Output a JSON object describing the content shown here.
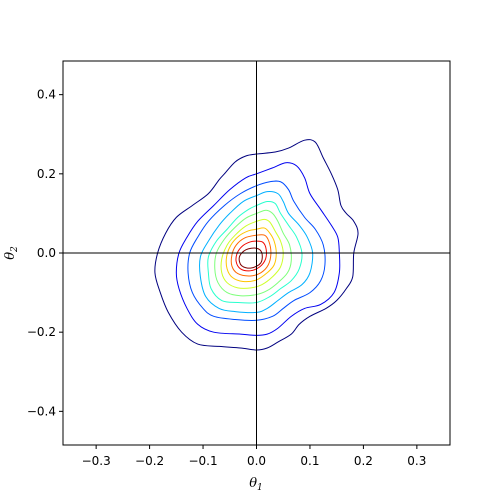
{
  "chart_data": {
    "type": "contour",
    "title": "",
    "xlabel": "θ",
    "xlabel_sub": "1",
    "ylabel": "θ",
    "ylabel_sub": "2",
    "xlim": [
      -0.362,
      0.362
    ],
    "ylim": [
      -0.485,
      0.485
    ],
    "xticks": [
      -0.3,
      -0.2,
      -0.1,
      0.0,
      0.1,
      0.2,
      0.3
    ],
    "xtick_labels": [
      "−0.3",
      "−0.2",
      "−0.1",
      "0.0",
      "0.1",
      "0.2",
      "0.3"
    ],
    "yticks": [
      -0.4,
      -0.2,
      0.0,
      0.2,
      0.4
    ],
    "ytick_labels": [
      "−0.4",
      "−0.2",
      "0.0",
      "0.2",
      "0.4"
    ],
    "reference_lines": {
      "x": 0.0,
      "y": 0.0
    },
    "colormap": "jet",
    "grid": false,
    "contours": [
      {
        "level": 1,
        "color": "#00007f",
        "path": [
          [
            0.0,
            0.25
          ],
          [
            0.035,
            0.255
          ],
          [
            0.06,
            0.265
          ],
          [
            0.09,
            0.285
          ],
          [
            0.11,
            0.28
          ],
          [
            0.125,
            0.24
          ],
          [
            0.14,
            0.2
          ],
          [
            0.152,
            0.16
          ],
          [
            0.158,
            0.12
          ],
          [
            0.168,
            0.1
          ],
          [
            0.182,
            0.08
          ],
          [
            0.19,
            0.05
          ],
          [
            0.182,
            0.0
          ],
          [
            0.18,
            -0.06
          ],
          [
            0.168,
            -0.09
          ],
          [
            0.15,
            -0.12
          ],
          [
            0.13,
            -0.14
          ],
          [
            0.1,
            -0.16
          ],
          [
            0.08,
            -0.18
          ],
          [
            0.065,
            -0.205
          ],
          [
            0.04,
            -0.225
          ],
          [
            0.02,
            -0.24
          ],
          [
            0.0,
            -0.245
          ],
          [
            -0.03,
            -0.24
          ],
          [
            -0.07,
            -0.236
          ],
          [
            -0.11,
            -0.23
          ],
          [
            -0.14,
            -0.2
          ],
          [
            -0.165,
            -0.15
          ],
          [
            -0.18,
            -0.1
          ],
          [
            -0.19,
            -0.05
          ],
          [
            -0.185,
            0.0
          ],
          [
            -0.17,
            0.05
          ],
          [
            -0.15,
            0.09
          ],
          [
            -0.12,
            0.12
          ],
          [
            -0.09,
            0.15
          ],
          [
            -0.07,
            0.185
          ],
          [
            -0.06,
            0.2
          ],
          [
            -0.04,
            0.23
          ],
          [
            -0.02,
            0.245
          ],
          [
            0.0,
            0.25
          ]
        ]
      },
      {
        "level": 2,
        "color": "#0000f0",
        "path": [
          [
            0.0,
            0.2
          ],
          [
            0.03,
            0.215
          ],
          [
            0.055,
            0.228
          ],
          [
            0.075,
            0.22
          ],
          [
            0.09,
            0.19
          ],
          [
            0.1,
            0.15
          ],
          [
            0.12,
            0.11
          ],
          [
            0.14,
            0.07
          ],
          [
            0.152,
            0.04
          ],
          [
            0.155,
            0.0
          ],
          [
            0.155,
            -0.05
          ],
          [
            0.145,
            -0.1
          ],
          [
            0.12,
            -0.13
          ],
          [
            0.09,
            -0.14
          ],
          [
            0.065,
            -0.16
          ],
          [
            0.04,
            -0.19
          ],
          [
            0.02,
            -0.205
          ],
          [
            0.0,
            -0.208
          ],
          [
            -0.03,
            -0.205
          ],
          [
            -0.08,
            -0.2
          ],
          [
            -0.11,
            -0.18
          ],
          [
            -0.13,
            -0.14
          ],
          [
            -0.145,
            -0.09
          ],
          [
            -0.15,
            -0.05
          ],
          [
            -0.145,
            0.0
          ],
          [
            -0.13,
            0.04
          ],
          [
            -0.11,
            0.08
          ],
          [
            -0.08,
            0.12
          ],
          [
            -0.05,
            0.16
          ],
          [
            -0.02,
            0.19
          ],
          [
            0.0,
            0.2
          ]
        ]
      },
      {
        "level": 3,
        "color": "#004cff",
        "path": [
          [
            0.0,
            0.17
          ],
          [
            0.025,
            0.18
          ],
          [
            0.045,
            0.18
          ],
          [
            0.06,
            0.16
          ],
          [
            0.07,
            0.13
          ],
          [
            0.09,
            0.09
          ],
          [
            0.11,
            0.06
          ],
          [
            0.125,
            0.02
          ],
          [
            0.128,
            -0.03
          ],
          [
            0.12,
            -0.07
          ],
          [
            0.1,
            -0.1
          ],
          [
            0.07,
            -0.12
          ],
          [
            0.05,
            -0.14
          ],
          [
            0.03,
            -0.16
          ],
          [
            0.0,
            -0.17
          ],
          [
            -0.04,
            -0.168
          ],
          [
            -0.08,
            -0.16
          ],
          [
            -0.1,
            -0.14
          ],
          [
            -0.12,
            -0.1
          ],
          [
            -0.128,
            -0.05
          ],
          [
            -0.125,
            0.0
          ],
          [
            -0.11,
            0.04
          ],
          [
            -0.09,
            0.08
          ],
          [
            -0.06,
            0.12
          ],
          [
            -0.03,
            0.15
          ],
          [
            0.0,
            0.17
          ]
        ]
      },
      {
        "level": 4,
        "color": "#00b0ff",
        "path": [
          [
            0.0,
            0.145
          ],
          [
            0.02,
            0.155
          ],
          [
            0.04,
            0.15
          ],
          [
            0.05,
            0.13
          ],
          [
            0.06,
            0.1
          ],
          [
            0.08,
            0.07
          ],
          [
            0.095,
            0.04
          ],
          [
            0.105,
            0.0
          ],
          [
            0.1,
            -0.05
          ],
          [
            0.085,
            -0.08
          ],
          [
            0.06,
            -0.1
          ],
          [
            0.04,
            -0.12
          ],
          [
            0.02,
            -0.14
          ],
          [
            0.0,
            -0.15
          ],
          [
            -0.04,
            -0.148
          ],
          [
            -0.07,
            -0.14
          ],
          [
            -0.095,
            -0.11
          ],
          [
            -0.105,
            -0.06
          ],
          [
            -0.105,
            -0.01
          ],
          [
            -0.09,
            0.03
          ],
          [
            -0.07,
            0.07
          ],
          [
            -0.05,
            0.1
          ],
          [
            -0.025,
            0.13
          ],
          [
            0.0,
            0.145
          ]
        ]
      },
      {
        "level": 5,
        "color": "#29ffce",
        "path": [
          [
            0.0,
            0.12
          ],
          [
            0.02,
            0.13
          ],
          [
            0.035,
            0.125
          ],
          [
            0.045,
            0.1
          ],
          [
            0.06,
            0.07
          ],
          [
            0.075,
            0.04
          ],
          [
            0.085,
            0.0
          ],
          [
            0.08,
            -0.04
          ],
          [
            0.065,
            -0.07
          ],
          [
            0.045,
            -0.09
          ],
          [
            0.025,
            -0.11
          ],
          [
            0.0,
            -0.125
          ],
          [
            -0.035,
            -0.125
          ],
          [
            -0.065,
            -0.12
          ],
          [
            -0.085,
            -0.09
          ],
          [
            -0.09,
            -0.05
          ],
          [
            -0.09,
            -0.01
          ],
          [
            -0.075,
            0.03
          ],
          [
            -0.055,
            0.06
          ],
          [
            -0.035,
            0.09
          ],
          [
            -0.015,
            0.11
          ],
          [
            0.0,
            0.12
          ]
        ]
      },
      {
        "level": 6,
        "color": "#7dff7a",
        "path": [
          [
            0.0,
            0.1
          ],
          [
            0.018,
            0.108
          ],
          [
            0.03,
            0.1
          ],
          [
            0.04,
            0.08
          ],
          [
            0.05,
            0.05
          ],
          [
            0.062,
            0.02
          ],
          [
            0.065,
            -0.02
          ],
          [
            0.058,
            -0.05
          ],
          [
            0.04,
            -0.075
          ],
          [
            0.02,
            -0.095
          ],
          [
            0.0,
            -0.105
          ],
          [
            -0.03,
            -0.108
          ],
          [
            -0.055,
            -0.1
          ],
          [
            -0.072,
            -0.075
          ],
          [
            -0.078,
            -0.04
          ],
          [
            -0.075,
            0.0
          ],
          [
            -0.06,
            0.035
          ],
          [
            -0.04,
            0.065
          ],
          [
            -0.02,
            0.088
          ],
          [
            0.0,
            0.1
          ]
        ]
      },
      {
        "level": 7,
        "color": "#ceff29",
        "path": [
          [
            0.0,
            0.08
          ],
          [
            0.015,
            0.085
          ],
          [
            0.025,
            0.078
          ],
          [
            0.035,
            0.055
          ],
          [
            0.045,
            0.03
          ],
          [
            0.05,
            0.0
          ],
          [
            0.045,
            -0.035
          ],
          [
            0.03,
            -0.06
          ],
          [
            0.01,
            -0.08
          ],
          [
            -0.01,
            -0.088
          ],
          [
            -0.035,
            -0.088
          ],
          [
            -0.055,
            -0.075
          ],
          [
            -0.065,
            -0.05
          ],
          [
            -0.065,
            -0.015
          ],
          [
            -0.055,
            0.02
          ],
          [
            -0.04,
            0.045
          ],
          [
            -0.02,
            0.068
          ],
          [
            0.0,
            0.08
          ]
        ]
      },
      {
        "level": 8,
        "color": "#ffc400",
        "path": [
          [
            0.0,
            0.06
          ],
          [
            0.015,
            0.063
          ],
          [
            0.025,
            0.05
          ],
          [
            0.033,
            0.03
          ],
          [
            0.037,
            0.0
          ],
          [
            0.033,
            -0.03
          ],
          [
            0.02,
            -0.05
          ],
          [
            0.0,
            -0.068
          ],
          [
            -0.025,
            -0.072
          ],
          [
            -0.045,
            -0.062
          ],
          [
            -0.055,
            -0.04
          ],
          [
            -0.056,
            -0.01
          ],
          [
            -0.048,
            0.02
          ],
          [
            -0.033,
            0.043
          ],
          [
            -0.015,
            0.056
          ],
          [
            0.0,
            0.06
          ]
        ]
      },
      {
        "level": 9,
        "color": "#ff6800",
        "path": [
          [
            0.0,
            0.045
          ],
          [
            0.015,
            0.045
          ],
          [
            0.023,
            0.03
          ],
          [
            0.027,
            0.0
          ],
          [
            0.022,
            -0.03
          ],
          [
            0.008,
            -0.05
          ],
          [
            -0.012,
            -0.058
          ],
          [
            -0.035,
            -0.052
          ],
          [
            -0.046,
            -0.033
          ],
          [
            -0.046,
            -0.005
          ],
          [
            -0.038,
            0.02
          ],
          [
            -0.022,
            0.038
          ],
          [
            0.0,
            0.045
          ]
        ]
      },
      {
        "level": 10,
        "color": "#f10800",
        "path": [
          [
            0.0,
            0.03
          ],
          [
            0.012,
            0.027
          ],
          [
            0.018,
            0.01
          ],
          [
            0.017,
            -0.015
          ],
          [
            0.006,
            -0.035
          ],
          [
            -0.012,
            -0.045
          ],
          [
            -0.03,
            -0.04
          ],
          [
            -0.038,
            -0.022
          ],
          [
            -0.036,
            0.0
          ],
          [
            -0.026,
            0.018
          ],
          [
            -0.012,
            0.028
          ],
          [
            0.0,
            0.03
          ]
        ]
      },
      {
        "level": 11,
        "color": "#7f0000",
        "path": [
          [
            0.0,
            0.012
          ],
          [
            0.01,
            0.0
          ],
          [
            0.008,
            -0.025
          ],
          [
            -0.01,
            -0.038
          ],
          [
            -0.028,
            -0.032
          ],
          [
            -0.032,
            -0.01
          ],
          [
            -0.02,
            0.008
          ],
          [
            0.0,
            0.012
          ]
        ]
      }
    ]
  }
}
